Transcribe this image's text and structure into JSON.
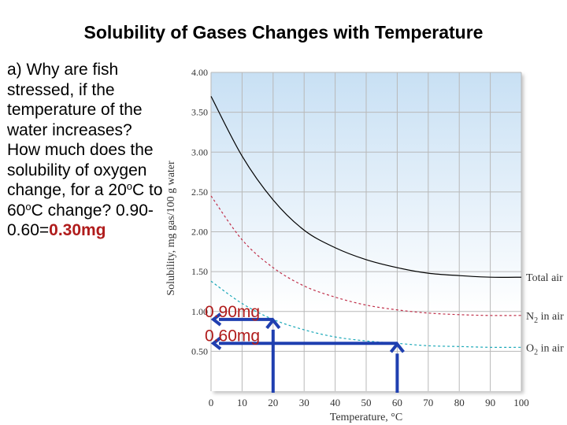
{
  "title": "Solubility of Gases Changes with Temperature",
  "question": {
    "part1": "a) Why are fish stressed, if the temperature of the water increases? How much does the solubility of oxygen change, for a 20",
    "deg_a": "o",
    "part2": "C to 60",
    "deg_b": "o",
    "part3": "C change?",
    "answer_prefix": "0.90-0.60=",
    "answer_value": "0.30mg"
  },
  "chart_data": {
    "type": "line",
    "xlabel": "Temperature, °C",
    "ylabel": "Solubility, mg gas/100 g water",
    "xlim": [
      0,
      100
    ],
    "ylim": [
      0,
      4.0
    ],
    "x_ticks": [
      "0",
      "10",
      "20",
      "30",
      "40",
      "50",
      "60",
      "70",
      "80",
      "90",
      "100"
    ],
    "y_ticks": [
      "0.50",
      "1.00",
      "1.50",
      "2.00",
      "2.50",
      "3.00",
      "3.50",
      "4.00"
    ],
    "grid": true,
    "series": [
      {
        "name": "Total air",
        "color": "#000000",
        "x": [
          0,
          10,
          20,
          30,
          40,
          50,
          60,
          70,
          80,
          90,
          100
        ],
        "values": [
          3.7,
          2.95,
          2.4,
          2.02,
          1.8,
          1.65,
          1.55,
          1.48,
          1.45,
          1.43,
          1.43
        ]
      },
      {
        "name": "N2 in air",
        "name_base": "N",
        "name_sub": "2",
        "name_rest": " in air",
        "color": "#c0304a",
        "x": [
          0,
          10,
          20,
          30,
          40,
          50,
          60,
          70,
          80,
          90,
          100
        ],
        "values": [
          2.45,
          1.9,
          1.55,
          1.32,
          1.18,
          1.08,
          1.02,
          0.98,
          0.96,
          0.95,
          0.95
        ]
      },
      {
        "name": "O2 in air",
        "name_base": "O",
        "name_sub": "2",
        "name_rest": " in air",
        "color": "#1aa8b8",
        "x": [
          0,
          10,
          20,
          30,
          40,
          50,
          60,
          70,
          80,
          90,
          100
        ],
        "values": [
          1.38,
          1.1,
          0.9,
          0.77,
          0.68,
          0.63,
          0.6,
          0.57,
          0.56,
          0.55,
          0.55
        ]
      }
    ],
    "annotations": [
      {
        "label": "0.90mg",
        "temperature": 20,
        "value": 0.9
      },
      {
        "label": "0.60mg",
        "temperature": 60,
        "value": 0.6
      }
    ],
    "colors": {
      "plot_background_top": "#c8e0f4",
      "plot_background_bottom": "#ffffff",
      "arrow": "#1f3fb0",
      "annotation_text": "#b01c1c"
    }
  }
}
